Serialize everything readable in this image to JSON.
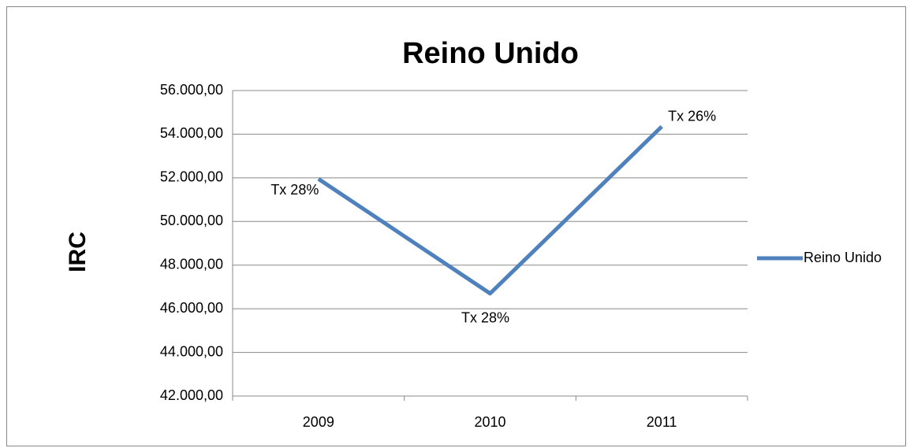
{
  "chart_data": {
    "type": "line",
    "title": "Reino Unido",
    "y_label": "IRC",
    "categories": [
      "2009",
      "2010",
      "2011"
    ],
    "series": [
      {
        "name": "Reino Unido",
        "color": "#4f81bd",
        "values": [
          51950,
          46700,
          54350
        ]
      }
    ],
    "annotations": [
      "Tx 28%",
      "Tx 28%",
      "Tx 26%"
    ],
    "ylim": [
      42000,
      56000
    ],
    "yticks": [
      {
        "value": 42000,
        "label": "42.000,00"
      },
      {
        "value": 44000,
        "label": "44.000,00"
      },
      {
        "value": 46000,
        "label": "46.000,00"
      },
      {
        "value": 48000,
        "label": "48.000,00"
      },
      {
        "value": 50000,
        "label": "50.000,00"
      },
      {
        "value": 52000,
        "label": "52.000,00"
      },
      {
        "value": 54000,
        "label": "54.000,00"
      },
      {
        "value": 56000,
        "label": "56.000,00"
      }
    ],
    "grid": true,
    "legend": "right"
  }
}
